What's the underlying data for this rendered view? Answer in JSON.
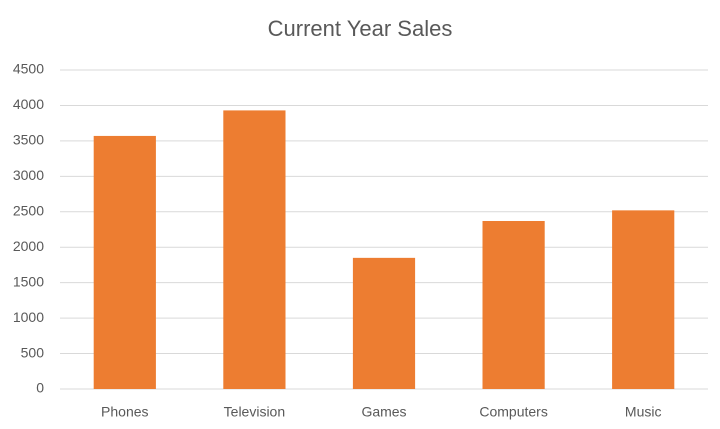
{
  "chart_data": {
    "type": "bar",
    "title": "Current Year Sales",
    "categories": [
      "Phones",
      "Television",
      "Games",
      "Computers",
      "Music"
    ],
    "values": [
      3570,
      3930,
      1850,
      2370,
      2520
    ],
    "color": "#ed7d31",
    "ylim": [
      0,
      4500
    ],
    "yticks": [
      0,
      500,
      1000,
      1500,
      2000,
      2500,
      3000,
      3500,
      4000,
      4500
    ],
    "grid": true
  }
}
